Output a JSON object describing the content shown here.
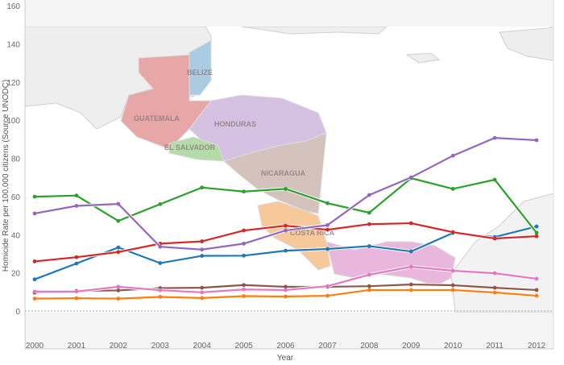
{
  "chart_data": {
    "type": "line",
    "title": "",
    "xlabel": "Year",
    "ylabel": "Homicide Rate per 100,000 citizens (Source UNODC)",
    "x": [
      2000,
      2001,
      2002,
      2003,
      2004,
      2005,
      2006,
      2007,
      2008,
      2009,
      2010,
      2011,
      2012
    ],
    "xticks": [
      "2000",
      "2001",
      "2002",
      "2003",
      "2004",
      "2005",
      "2006",
      "2007",
      "2008",
      "2009",
      "2010",
      "2011",
      "2012"
    ],
    "ylim": [
      -20,
      160
    ],
    "yticks": [
      "0",
      "20",
      "40",
      "60",
      "80",
      "100",
      "120",
      "140",
      "160"
    ],
    "grid": false,
    "legend": "none",
    "background_map_labels": [
      "BELIZE",
      "GUATEMALA",
      "HONDURAS",
      "EL SALVADOR",
      "NICARAGUA",
      "COSTA RICA"
    ],
    "series": [
      {
        "color": "#1f77b4",
        "values": [
          16.6,
          24.9,
          33.3,
          25.1,
          28.9,
          29.0,
          31.6,
          32.5,
          34.0,
          31.2,
          40.9,
          38.8,
          44.3
        ]
      },
      {
        "color": "#ff7f0e",
        "values": [
          6.5,
          6.7,
          6.5,
          7.4,
          6.8,
          7.8,
          7.6,
          8.0,
          11.0,
          11.0,
          11.0,
          9.7,
          8.0
        ]
      },
      {
        "color": "#2ca02c",
        "values": [
          59.9,
          60.5,
          47.2,
          56.0,
          64.7,
          62.6,
          64.0,
          56.5,
          51.5,
          69.6,
          64.0,
          68.8,
          41.0
        ]
      },
      {
        "color": "#d62728",
        "values": [
          26.0,
          28.2,
          30.9,
          35.3,
          36.5,
          42.2,
          44.7,
          42.6,
          45.5,
          46.0,
          41.3,
          38.0,
          39.2
        ]
      },
      {
        "color": "#9467bd",
        "values": [
          51.1,
          55.1,
          56.1,
          33.7,
          32.2,
          35.3,
          42.2,
          45.0,
          60.8,
          70.0,
          81.4,
          90.7,
          89.5
        ]
      },
      {
        "color": "#8c564b",
        "values": [
          9.6,
          10.5,
          10.8,
          12.0,
          12.2,
          13.6,
          12.7,
          12.7,
          13.0,
          13.9,
          13.5,
          12.2,
          11.0
        ]
      },
      {
        "color": "#e377c2",
        "values": [
          10.2,
          10.2,
          12.7,
          10.9,
          9.8,
          11.3,
          11.0,
          13.0,
          19.0,
          23.2,
          21.1,
          19.8,
          16.9
        ]
      }
    ]
  }
}
